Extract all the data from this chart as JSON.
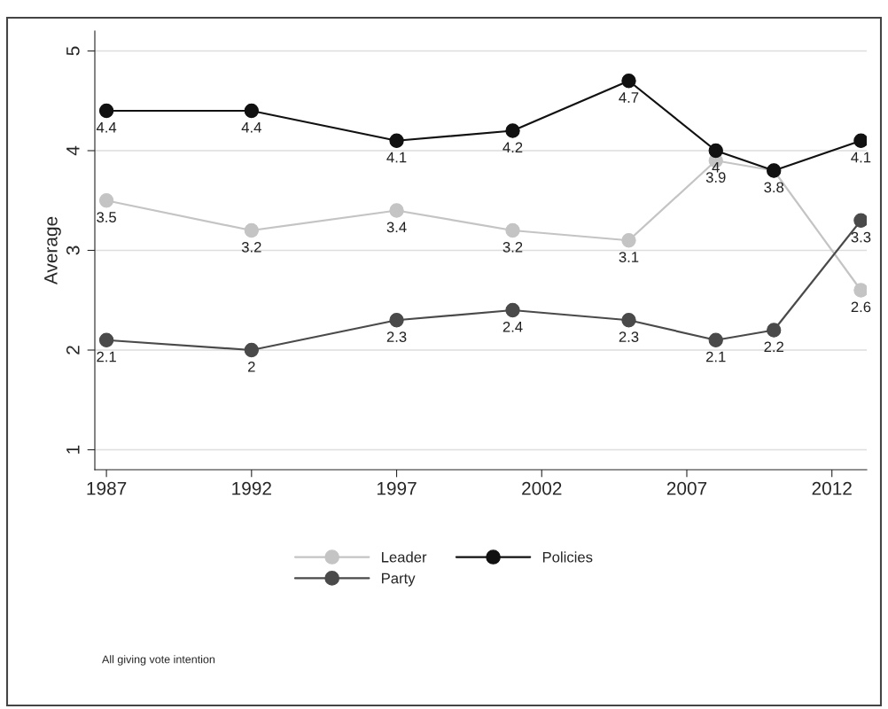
{
  "chart_data": {
    "type": "line",
    "ylabel": "Average",
    "x": [
      1987,
      1992,
      1997,
      2001,
      2005,
      2008,
      2010,
      2013
    ],
    "series": [
      {
        "name": "Leader",
        "color": "#c4c4c4",
        "values": [
          3.5,
          3.2,
          3.4,
          3.2,
          3.1,
          3.9,
          3.8,
          2.6
        ],
        "value_labels": [
          "3.5",
          "3.2",
          "3.4",
          "3.2",
          "3.1",
          "3.9",
          null,
          "2.6"
        ]
      },
      {
        "name": "Policies",
        "color": "#111111",
        "values": [
          4.4,
          4.4,
          4.1,
          4.2,
          4.7,
          4,
          3.8,
          4.1
        ]
      },
      {
        "name": "Party",
        "color": "#4a4a4a",
        "values": [
          2.1,
          2,
          2.3,
          2.4,
          2.3,
          2.1,
          2.2,
          3.3
        ]
      }
    ],
    "xlim": [
      1986.6,
      2013.2
    ],
    "xticks": [
      1987,
      1992,
      1997,
      2002,
      2007,
      2012
    ],
    "ylim": [
      0.8,
      5.2
    ],
    "yticks": [
      1,
      2,
      3,
      4,
      5
    ],
    "grid": "y",
    "legend": "bottom",
    "marker": "circle",
    "line_style": "solid",
    "data_labels": true,
    "annotations": [
      "All giving vote intention"
    ]
  }
}
